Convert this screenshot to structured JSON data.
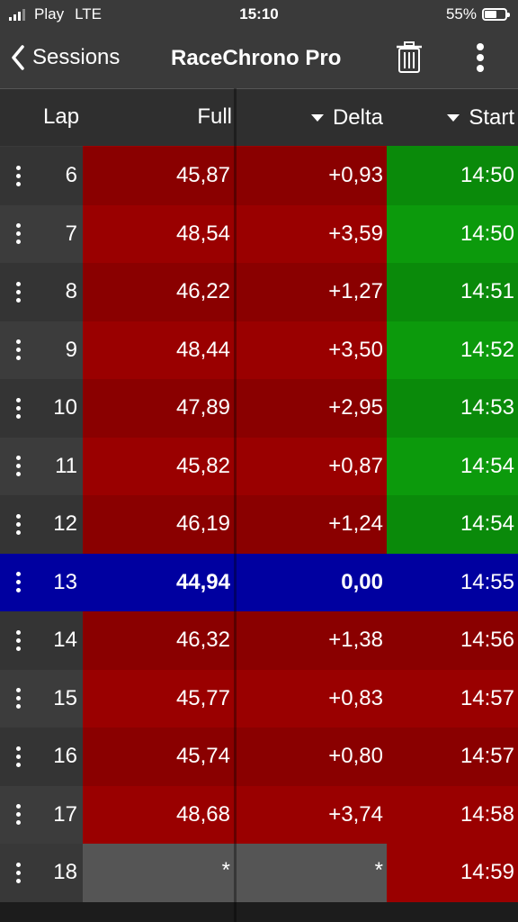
{
  "status": {
    "carrier": "Play",
    "network": "LTE",
    "time": "15:10",
    "battery": "55%"
  },
  "nav": {
    "back_label": "Sessions",
    "title": "RaceChrono Pro"
  },
  "headers": {
    "lap": "Lap",
    "full": "Full",
    "delta": "Delta",
    "start": "Start"
  },
  "colors": {
    "dark_red": "#8a0000",
    "red": "#9a0000",
    "green_dark": "#0a8a0a",
    "green": "#0c9a0c",
    "blue": "#0000a0",
    "grey": "#555555",
    "gutter": "#3a3a3a"
  },
  "rows": [
    {
      "lap": "6",
      "full": "45,87",
      "delta": "+0,93",
      "start": "14:50"
    },
    {
      "lap": "7",
      "full": "48,54",
      "delta": "+3,59",
      "start": "14:50"
    },
    {
      "lap": "8",
      "full": "46,22",
      "delta": "+1,27",
      "start": "14:51"
    },
    {
      "lap": "9",
      "full": "48,44",
      "delta": "+3,50",
      "start": "14:52"
    },
    {
      "lap": "10",
      "full": "47,89",
      "delta": "+2,95",
      "start": "14:53"
    },
    {
      "lap": "11",
      "full": "45,82",
      "delta": "+0,87",
      "start": "14:54"
    },
    {
      "lap": "12",
      "full": "46,19",
      "delta": "+1,24",
      "start": "14:54"
    },
    {
      "lap": "13",
      "full": "44,94",
      "delta": "0,00",
      "start": "14:55"
    },
    {
      "lap": "14",
      "full": "46,32",
      "delta": "+1,38",
      "start": "14:56"
    },
    {
      "lap": "15",
      "full": "45,77",
      "delta": "+0,83",
      "start": "14:57"
    },
    {
      "lap": "16",
      "full": "45,74",
      "delta": "+0,80",
      "start": "14:57"
    },
    {
      "lap": "17",
      "full": "48,68",
      "delta": "+3,74",
      "start": "14:58"
    },
    {
      "lap": "18",
      "full": "*",
      "delta": "*",
      "start": "14:59"
    }
  ]
}
